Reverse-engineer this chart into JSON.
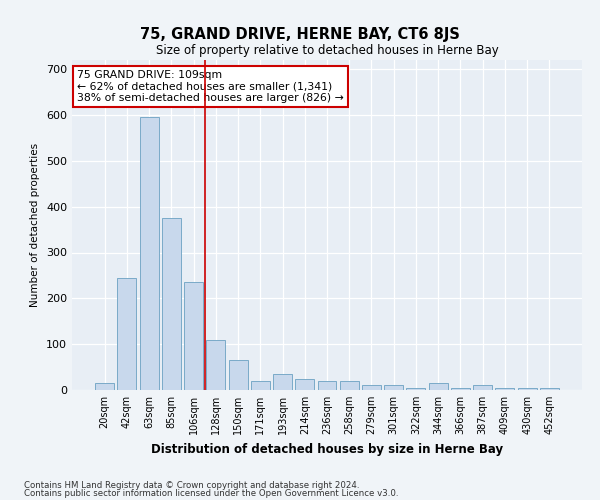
{
  "title": "75, GRAND DRIVE, HERNE BAY, CT6 8JS",
  "subtitle": "Size of property relative to detached houses in Herne Bay",
  "xlabel": "Distribution of detached houses by size in Herne Bay",
  "ylabel": "Number of detached properties",
  "bar_color": "#c8d8ec",
  "bar_edge_color": "#7aaac8",
  "background_color": "#e8eef5",
  "grid_color": "#ffffff",
  "annotation_text": "75 GRAND DRIVE: 109sqm\n← 62% of detached houses are smaller (1,341)\n38% of semi-detached houses are larger (826) →",
  "vline_x": 4.5,
  "vline_color": "#cc0000",
  "categories": [
    "20sqm",
    "42sqm",
    "63sqm",
    "85sqm",
    "106sqm",
    "128sqm",
    "150sqm",
    "171sqm",
    "193sqm",
    "214sqm",
    "236sqm",
    "258sqm",
    "279sqm",
    "301sqm",
    "322sqm",
    "344sqm",
    "366sqm",
    "387sqm",
    "409sqm",
    "430sqm",
    "452sqm"
  ],
  "values": [
    15,
    245,
    595,
    375,
    235,
    110,
    65,
    20,
    35,
    25,
    20,
    20,
    10,
    10,
    5,
    15,
    5,
    10,
    5,
    5,
    5
  ],
  "ylim": [
    0,
    720
  ],
  "yticks": [
    0,
    100,
    200,
    300,
    400,
    500,
    600,
    700
  ],
  "footnote1": "Contains HM Land Registry data © Crown copyright and database right 2024.",
  "footnote2": "Contains public sector information licensed under the Open Government Licence v3.0."
}
